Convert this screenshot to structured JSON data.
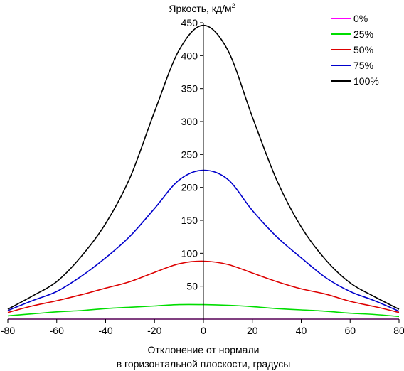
{
  "chart_data": {
    "type": "line",
    "ylabel": "Яркость, кд/м",
    "ylabel_superscript": "2",
    "xlabel_lines": [
      "Отклонение от нормали",
      "в горизонтальной плоскости, градусы"
    ],
    "xlim": [
      -80,
      80
    ],
    "ylim": [
      0,
      450
    ],
    "xticks": [
      -80,
      -60,
      -40,
      -20,
      0,
      20,
      40,
      60,
      80
    ],
    "yticks": [
      50,
      100,
      150,
      200,
      250,
      300,
      350,
      400,
      450
    ],
    "grid": false,
    "legend_position": "top-right",
    "x": [
      -80,
      -70,
      -60,
      -50,
      -40,
      -30,
      -20,
      -10,
      0,
      10,
      20,
      30,
      40,
      50,
      60,
      70,
      80
    ],
    "series": [
      {
        "name": "0%",
        "color": "#ff00ff",
        "values": [
          0,
          0,
          0,
          0,
          0,
          0,
          0,
          0,
          0,
          0,
          0,
          0,
          0,
          0,
          0,
          0,
          0
        ]
      },
      {
        "name": "25%",
        "color": "#00dd00",
        "values": [
          5,
          8,
          11,
          13,
          16,
          18,
          20,
          22,
          22,
          21,
          19,
          16,
          14,
          12,
          9,
          7,
          4
        ]
      },
      {
        "name": "50%",
        "color": "#dd0000",
        "values": [
          10,
          20,
          28,
          37,
          47,
          57,
          71,
          84,
          88,
          83,
          70,
          57,
          46,
          38,
          27,
          19,
          10
        ]
      },
      {
        "name": "75%",
        "color": "#0000cc",
        "values": [
          13,
          28,
          42,
          65,
          93,
          126,
          168,
          211,
          226,
          212,
          165,
          125,
          93,
          63,
          42,
          28,
          12
        ]
      },
      {
        "name": "100%",
        "color": "#000000",
        "values": [
          15,
          35,
          57,
          95,
          145,
          215,
          315,
          408,
          446,
          408,
          307,
          211,
          140,
          90,
          55,
          34,
          15
        ]
      }
    ]
  }
}
